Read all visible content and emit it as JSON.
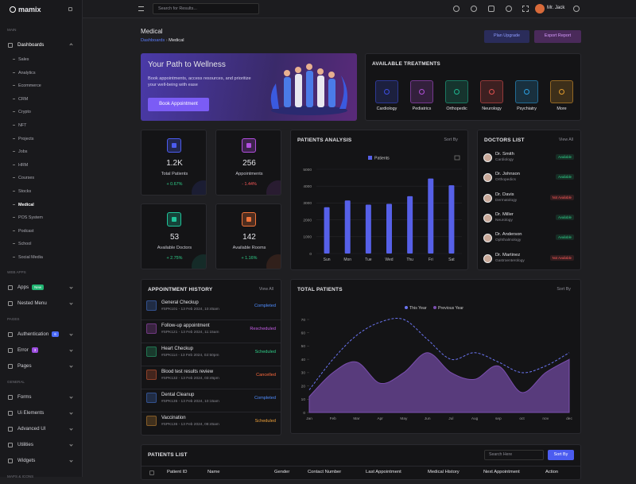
{
  "brand": "mamix",
  "sidebar": {
    "sections": [
      {
        "title": "MAIN",
        "items": [
          {
            "label": "Dashboards",
            "open": true,
            "sub": [
              "Sales",
              "Analytics",
              "Ecommerce",
              "CRM",
              "Crypto",
              "NFT",
              "Projects",
              "Jobs",
              "HRM",
              "Courses",
              "Stocks",
              "Medical",
              "POS System",
              "Podcast",
              "School",
              "Social Media"
            ]
          }
        ]
      },
      {
        "title": "WEB APPS",
        "items": [
          {
            "label": "Apps",
            "badge": "New",
            "badge_color": "#22b573"
          },
          {
            "label": "Nested Menu"
          }
        ]
      },
      {
        "title": "PAGES",
        "items": [
          {
            "label": "Authentication",
            "badge": "6",
            "badge_color": "#4b6bfb"
          },
          {
            "label": "Error",
            "badge": "3",
            "badge_color": "#9b4dde"
          },
          {
            "label": "Pages"
          }
        ]
      },
      {
        "title": "GENERAL",
        "items": [
          {
            "label": "Forms"
          },
          {
            "label": "Ui Elements"
          },
          {
            "label": "Advanced UI"
          },
          {
            "label": "Utilities"
          },
          {
            "label": "Widgets"
          }
        ]
      },
      {
        "title": "MAPS & ICONS",
        "items": []
      }
    ],
    "active": "Medical"
  },
  "header": {
    "search": "Search for Results...",
    "user": "Mr. Jack"
  },
  "page": {
    "title": "Medical",
    "breadcrumb": [
      "Dashboards",
      "Medical"
    ],
    "buttons": [
      "Plan Upgrade",
      "Export Report"
    ]
  },
  "wellness": {
    "title": "Your Path to Wellness",
    "text": "Book appointments, access resources, and prioritize your well-being with ease",
    "button": "Book Appointment"
  },
  "treatments": {
    "title": "AVAILABLE TREATMENTS",
    "items": [
      {
        "label": "Cardiology",
        "color": "#3d4ee0"
      },
      {
        "label": "Pediatrics",
        "color": "#b04fd8"
      },
      {
        "label": "Orthopedic",
        "color": "#1fb58f"
      },
      {
        "label": "Neurology",
        "color": "#e0504f"
      },
      {
        "label": "Psychiatry",
        "color": "#2b9fe0"
      },
      {
        "label": "More",
        "color": "#e09a2b"
      }
    ]
  },
  "stats": [
    {
      "value": "1.2K",
      "label": "Total Patients",
      "change": "+ 0.67%",
      "color": "#4b5cf0",
      "change_color": "#2fd08a"
    },
    {
      "value": "256",
      "label": "Appointments",
      "change": "- 1.44%",
      "color": "#b24fe0",
      "change_color": "#ff5a5a"
    },
    {
      "value": "53",
      "label": "Available Doctors",
      "change": "+ 2.75%",
      "color": "#1fc49a",
      "change_color": "#2fd08a"
    },
    {
      "value": "142",
      "label": "Available Rooms",
      "change": "+ 1.16%",
      "color": "#f0743a",
      "change_color": "#2fd08a"
    }
  ],
  "doctors": {
    "title": "DOCTORS LIST",
    "view_all": "View All",
    "items": [
      {
        "name": "Dr. Smith",
        "specialty": "Cardiology",
        "status": "Available",
        "color": "#2fd08a"
      },
      {
        "name": "Dr. Johnson",
        "specialty": "Orthopedics",
        "status": "Available",
        "color": "#2fd08a"
      },
      {
        "name": "Dr. Davis",
        "specialty": "Dermatology",
        "status": "Not Available",
        "color": "#ff5a5a"
      },
      {
        "name": "Dr. Miller",
        "specialty": "Neurology",
        "status": "Available",
        "color": "#2fd08a"
      },
      {
        "name": "Dr. Anderson",
        "specialty": "Ophthalmology",
        "status": "Available",
        "color": "#2fd08a"
      },
      {
        "name": "Dr. Martinez",
        "specialty": "Gastroenterology",
        "status": "Not Available",
        "color": "#ff5a5a"
      }
    ]
  },
  "appointments": {
    "title": "APPOINTMENT HISTORY",
    "view_all": "View All",
    "items": [
      {
        "name": "General Checkup",
        "detail": "#SPK101 - 13 Feb 2024, 10:45am",
        "status": "Completed",
        "color": "#4f8dff"
      },
      {
        "name": "Follow-up appointment",
        "detail": "#SPK121 - 13 Feb 2024, 11:15am",
        "status": "Rescheduled",
        "color": "#c65de8"
      },
      {
        "name": "Heart Checkup",
        "detail": "#SPK114 - 13 Feb 2024, 02:50pm",
        "status": "Scheduled",
        "color": "#2fd08a"
      },
      {
        "name": "Blood test results review",
        "detail": "#SPK132 - 13 Feb 2024, 03:45pm",
        "status": "Cancelled",
        "color": "#ff6b3d"
      },
      {
        "name": "Dental Cleanup",
        "detail": "#SPK135 - 13 Feb 2024, 10:15am",
        "status": "Completed",
        "color": "#4f8dff"
      },
      {
        "name": "Vaccination",
        "detail": "#SPK136 - 13 Feb 2024, 08:45am",
        "status": "Scheduled",
        "color": "#f0a23a"
      }
    ]
  },
  "chart_data": [
    {
      "type": "bar",
      "title": "PATIENTS ANALYSIS",
      "sort": "Sort By",
      "categories": [
        "Sun",
        "Mon",
        "Tue",
        "Wed",
        "Thu",
        "Fri",
        "Sat"
      ],
      "series": [
        {
          "name": "Patients",
          "color": "#5660e8",
          "values": [
            2750,
            3150,
            2900,
            2950,
            3400,
            4450,
            4050
          ]
        }
      ],
      "ylim": [
        0,
        5000
      ],
      "yticks": [
        0,
        1000,
        2000,
        3000,
        4000,
        5000
      ],
      "grid": true
    },
    {
      "type": "line",
      "title": "TOTAL PATIENTS",
      "sort": "Sort By",
      "categories": [
        "Jan",
        "Feb",
        "Mar",
        "Apr",
        "May",
        "Jun",
        "Jul",
        "Aug",
        "sep",
        "oct",
        "nov",
        "dec"
      ],
      "series": [
        {
          "name": "This Year",
          "color": "#6a74f0",
          "dashed": true,
          "values": [
            17,
            40,
            58,
            68,
            70,
            55,
            40,
            45,
            38,
            30,
            35,
            45
          ]
        },
        {
          "name": "Previous Year",
          "color": "#7b4fb0",
          "fill": true,
          "values": [
            12,
            30,
            38,
            22,
            30,
            45,
            30,
            25,
            35,
            15,
            30,
            40
          ]
        }
      ],
      "ylim": [
        0,
        70
      ],
      "yticks": [
        0,
        10,
        20,
        30,
        40,
        50,
        60,
        70
      ],
      "grid": false
    }
  ],
  "patients_list": {
    "title": "PATIENTS LIST",
    "search": "Search Here",
    "sort": "Sort By",
    "columns": [
      "Patient ID",
      "Name",
      "Gender",
      "Contact Number",
      "Last Appointment",
      "Medical History",
      "Next Appointment",
      "Action"
    ]
  }
}
